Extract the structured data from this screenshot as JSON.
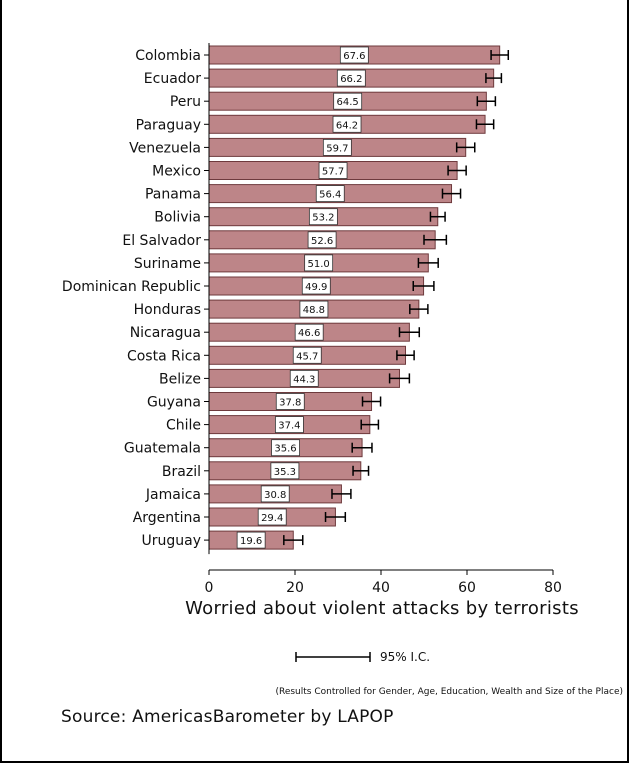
{
  "colors": {
    "bar_fill": "#bd8588",
    "bar_stroke": "#6e3a3d",
    "axis": "#000000",
    "label_box": "#ffffff"
  },
  "chart_data": {
    "type": "bar",
    "orientation": "horizontal",
    "categories": [
      "Colombia",
      "Ecuador",
      "Peru",
      "Paraguay",
      "Venezuela",
      "Mexico",
      "Panama",
      "Bolivia",
      "El Salvador",
      "Suriname",
      "Dominican Republic",
      "Honduras",
      "Nicaragua",
      "Costa Rica",
      "Belize",
      "Guyana",
      "Chile",
      "Guatemala",
      "Brazil",
      "Jamaica",
      "Argentina",
      "Uruguay"
    ],
    "values": [
      67.6,
      66.2,
      64.5,
      64.2,
      59.7,
      57.7,
      56.4,
      53.2,
      52.6,
      51.0,
      49.9,
      48.8,
      46.6,
      45.7,
      44.3,
      37.8,
      37.4,
      35.6,
      35.3,
      30.8,
      29.4,
      19.6
    ],
    "value_labels": [
      "67.6",
      "66.2",
      "64.5",
      "64.2",
      "59.7",
      "57.7",
      "56.4",
      "53.2",
      "52.6",
      "51.0",
      "49.9",
      "48.8",
      "46.6",
      "45.7",
      "44.3",
      "37.8",
      "37.4",
      "35.6",
      "35.3",
      "30.8",
      "29.4",
      "19.6"
    ],
    "ci_low": [
      65.6,
      64.4,
      62.4,
      62.2,
      57.6,
      55.6,
      54.3,
      51.5,
      50.0,
      48.7,
      47.5,
      46.7,
      44.3,
      43.7,
      42.0,
      35.7,
      35.4,
      33.3,
      33.5,
      28.6,
      27.1,
      17.4
    ],
    "ci_high": [
      69.6,
      68.0,
      66.6,
      66.2,
      61.8,
      59.8,
      58.5,
      54.9,
      55.2,
      53.3,
      52.3,
      50.9,
      48.9,
      47.7,
      46.6,
      39.9,
      39.4,
      37.9,
      37.1,
      33.0,
      31.7,
      21.8
    ],
    "xlim": [
      0,
      80
    ],
    "xticks": [
      "0",
      "20",
      "40",
      "60",
      "80"
    ],
    "xlabel": "Worried about violent attacks by terrorists",
    "ylabel": "",
    "grid": false,
    "legend": {
      "label": "95% I.C."
    }
  },
  "note": "(Results Controlled for Gender, Age, Education, Wealth and Size of the Place)",
  "source": "Source: AmericasBarometer by  LAPOP"
}
